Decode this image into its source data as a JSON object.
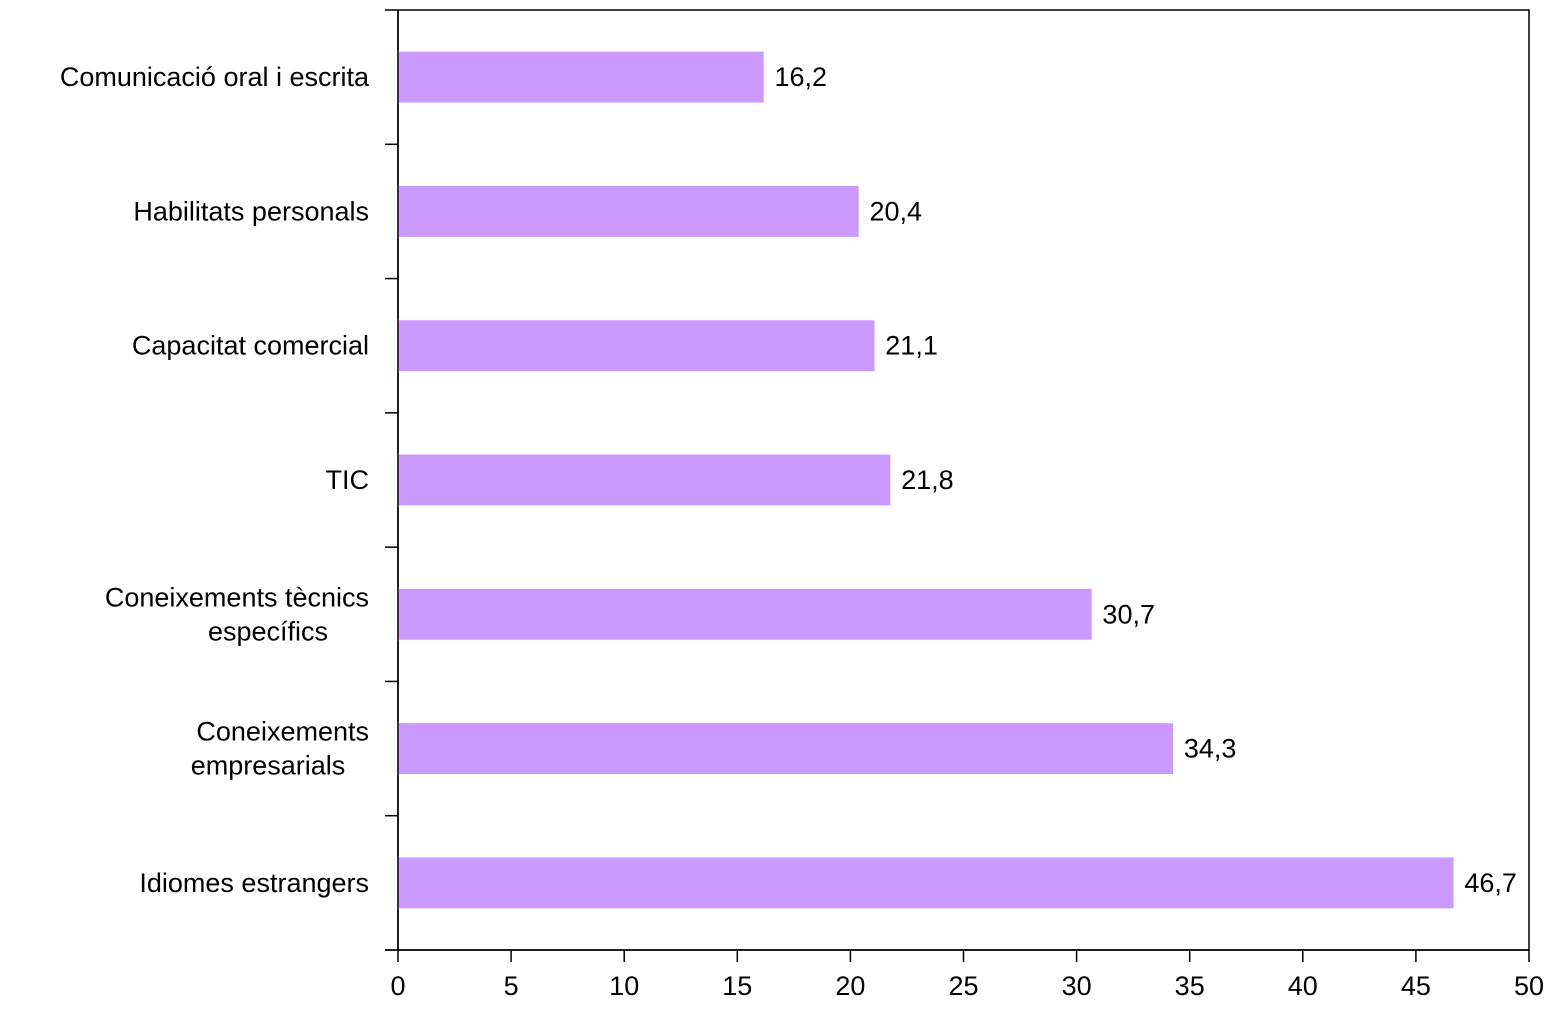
{
  "chart_data": {
    "type": "bar",
    "orientation": "horizontal",
    "categories": [
      [
        "Comunicació oral i escrita"
      ],
      [
        "Habilitats personals"
      ],
      [
        "Capacitat comercial"
      ],
      [
        "TIC"
      ],
      [
        "Coneixements tècnics",
        "específics"
      ],
      [
        "Coneixements",
        "empresarials"
      ],
      [
        "Idiomes estrangers"
      ]
    ],
    "values": [
      16.2,
      20.4,
      21.1,
      21.8,
      30.7,
      34.3,
      46.7
    ],
    "value_labels": [
      "16,2",
      "20,4",
      "21,1",
      "21,8",
      "30,7",
      "34,3",
      "46,7"
    ],
    "xlim": [
      0,
      50
    ],
    "xticks": [
      0,
      5,
      10,
      15,
      20,
      25,
      30,
      35,
      40,
      45,
      50
    ],
    "title": "",
    "xlabel": "",
    "ylabel": "",
    "grid": false,
    "legend": "none",
    "colors": {
      "bar": "#cc99ff",
      "axis": "#000000"
    }
  }
}
